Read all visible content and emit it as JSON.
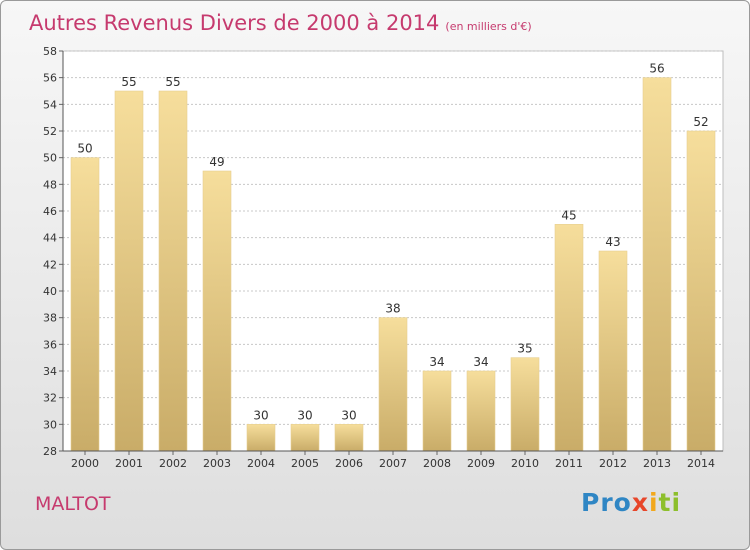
{
  "header": {
    "title": "Autres Revenus Divers de 2000 à 2014",
    "subtitle": "(en milliers d'€)"
  },
  "footer": {
    "place": "MALTOT",
    "logo_parts": [
      "Pro",
      "x",
      "i",
      "ti"
    ]
  },
  "colors": {
    "title": "#c63a6e",
    "bar_top": "#f6de9c",
    "bar_bottom": "#c9ac68",
    "grid": "#c8c8c8"
  },
  "chart_data": {
    "type": "bar",
    "categories": [
      "2000",
      "2001",
      "2002",
      "2003",
      "2004",
      "2005",
      "2006",
      "2007",
      "2008",
      "2009",
      "2010",
      "2011",
      "2012",
      "2013",
      "2014"
    ],
    "values": [
      50,
      55,
      55,
      49,
      30,
      30,
      30,
      38,
      34,
      34,
      35,
      45,
      43,
      56,
      52
    ],
    "data_labels": [
      "50",
      "55",
      "55",
      "49",
      "30",
      "30",
      "30",
      "38",
      "34",
      "34",
      "35",
      "45",
      "43",
      "56",
      "52"
    ],
    "title": "Autres Revenus Divers de 2000 à 2014",
    "subtitle": "(en milliers d'€)",
    "xlabel": "",
    "ylabel": "",
    "ylim": [
      28,
      58
    ],
    "yticks": [
      28,
      30,
      32,
      34,
      36,
      38,
      40,
      42,
      44,
      46,
      48,
      50,
      52,
      54,
      56,
      58
    ],
    "grid": true
  }
}
